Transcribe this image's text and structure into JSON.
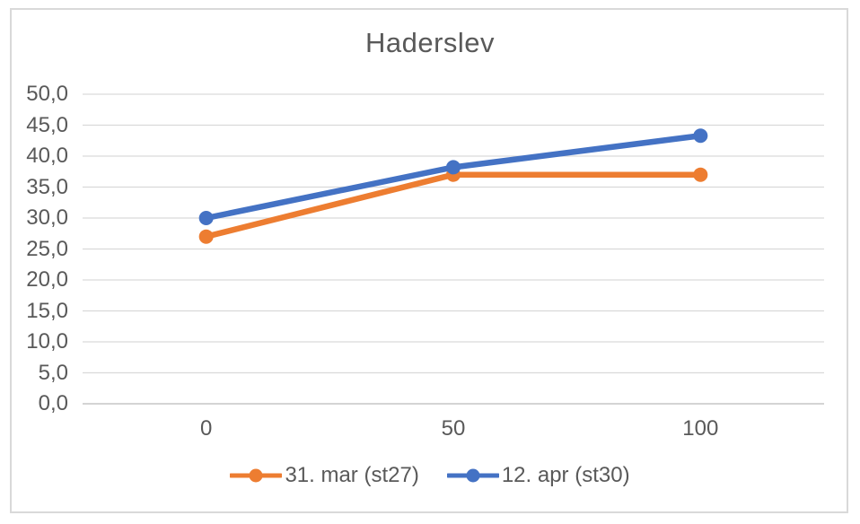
{
  "chart_data": {
    "type": "line",
    "title": "Haderslev",
    "categories": [
      "0",
      "50",
      "100"
    ],
    "x_values": [
      0,
      50,
      100
    ],
    "series": [
      {
        "name": "31. mar (st27)",
        "values": [
          27.0,
          37.0,
          37.0
        ],
        "color": "#ED7D31"
      },
      {
        "name": "12. apr (st30)",
        "values": [
          30.0,
          38.2,
          43.3
        ],
        "color": "#4472C4"
      }
    ],
    "ylim": [
      0,
      50
    ],
    "y_tick_values": [
      0,
      5,
      10,
      15,
      20,
      25,
      30,
      35,
      40,
      45,
      50
    ],
    "y_tick_labels": [
      "0,0",
      "5,0",
      "10,0",
      "15,0",
      "20,0",
      "25,0",
      "30,0",
      "35,0",
      "40,0",
      "45,0",
      "50,0"
    ],
    "xlabel": "",
    "ylabel": "",
    "grid": true,
    "legend_position": "bottom",
    "decimal_separator": ",",
    "style": {
      "text_color": "#595959",
      "gridline_color": "#D9D9D9",
      "axis_line_color": "#C6C6C6",
      "frame_border_color": "#D9D9D9",
      "background": "#FFFFFF"
    }
  }
}
